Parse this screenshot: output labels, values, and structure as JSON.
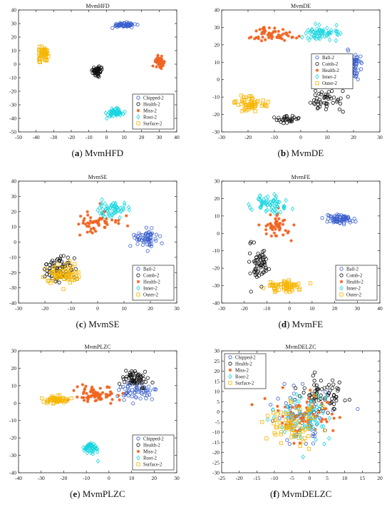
{
  "colors": {
    "blue": "#3a5fcd",
    "black": "#111111",
    "orange": "#f06522",
    "cyan": "#19d6e0",
    "yellow": "#f7b500"
  },
  "chart_data": [
    {
      "type": "scatter",
      "id": "a",
      "title": "MvmHFD",
      "caption_letter": "(a)",
      "caption_name": "MvmHFD",
      "xlim": [
        -50,
        40
      ],
      "ylim": [
        -50,
        40
      ],
      "xticks": [
        -50,
        -40,
        -30,
        -20,
        -10,
        0,
        10,
        20,
        30,
        40
      ],
      "yticks": [
        -50,
        -40,
        -30,
        -20,
        -10,
        0,
        10,
        20,
        30,
        40
      ],
      "legend_position": "bottom-right",
      "series": [
        {
          "name": "Chipped-2",
          "marker": "circle",
          "color": "blue",
          "clusters": [
            {
              "cx": 10,
              "cy": 29,
              "sx": 6,
              "sy": 1.5,
              "n": 60
            }
          ]
        },
        {
          "name": "Health-2",
          "marker": "circle",
          "color": "black",
          "clusters": [
            {
              "cx": -5,
              "cy": -5,
              "sx": 2.5,
              "sy": 3,
              "n": 60
            }
          ]
        },
        {
          "name": "Miss-2",
          "marker": "star",
          "color": "orange",
          "clusters": [
            {
              "cx": 30,
              "cy": 2,
              "sx": 2.5,
              "sy": 3,
              "n": 60
            }
          ]
        },
        {
          "name": "Root-2",
          "marker": "diamond",
          "color": "cyan",
          "clusters": [
            {
              "cx": 5,
              "cy": -36,
              "sx": 4.5,
              "sy": 2.5,
              "n": 60
            }
          ]
        },
        {
          "name": "Surface-2",
          "marker": "square",
          "color": "yellow",
          "clusters": [
            {
              "cx": -36,
              "cy": 7,
              "sx": 2.5,
              "sy": 5,
              "n": 50
            }
          ]
        }
      ]
    },
    {
      "type": "scatter",
      "id": "b",
      "title": "MvmDE",
      "caption_letter": "(b)",
      "caption_name": "MvmDE",
      "xlim": [
        -30,
        30
      ],
      "ylim": [
        -30,
        40
      ],
      "xticks": [
        -30,
        -20,
        -10,
        0,
        10,
        20,
        30
      ],
      "yticks": [
        -30,
        -20,
        -10,
        0,
        10,
        20,
        30,
        40
      ],
      "legend_position": "right",
      "series": [
        {
          "name": "Ball-2",
          "marker": "circle",
          "color": "blue",
          "clusters": [
            {
              "cx": 20,
              "cy": 8,
              "sx": 3,
              "sy": 8,
              "n": 70
            }
          ]
        },
        {
          "name": "Comb-2",
          "marker": "circle",
          "color": "black",
          "clusters": [
            {
              "cx": 10,
              "cy": -12,
              "sx": 6,
              "sy": 6,
              "n": 50
            },
            {
              "cx": -5,
              "cy": -23,
              "sx": 4,
              "sy": 2,
              "n": 30
            }
          ]
        },
        {
          "name": "Health-2",
          "marker": "star",
          "color": "orange",
          "clusters": [
            {
              "cx": -10,
              "cy": 26,
              "sx": 7,
              "sy": 4,
              "n": 60
            }
          ]
        },
        {
          "name": "Inner-2",
          "marker": "diamond",
          "color": "cyan",
          "clusters": [
            {
              "cx": 8,
              "cy": 27,
              "sx": 6,
              "sy": 4,
              "n": 60
            }
          ]
        },
        {
          "name": "Outer-2",
          "marker": "square",
          "color": "yellow",
          "clusters": [
            {
              "cx": -19,
              "cy": -14,
              "sx": 5,
              "sy": 4,
              "n": 60
            }
          ]
        }
      ]
    },
    {
      "type": "scatter",
      "id": "c",
      "title": "MvmSE",
      "caption_letter": "(c)",
      "caption_name": "MvmSE",
      "xlim": [
        -30,
        30
      ],
      "ylim": [
        -40,
        40
      ],
      "xticks": [
        -30,
        -20,
        -10,
        0,
        10,
        20,
        30
      ],
      "yticks": [
        -40,
        -30,
        -20,
        -10,
        0,
        10,
        20,
        30,
        40
      ],
      "legend_position": "bottom-right",
      "series": [
        {
          "name": "Ball-2",
          "marker": "circle",
          "color": "blue",
          "clusters": [
            {
              "cx": 18,
              "cy": 2,
              "sx": 4,
              "sy": 5,
              "n": 60
            }
          ]
        },
        {
          "name": "Comb-2",
          "marker": "circle",
          "color": "black",
          "clusters": [
            {
              "cx": -15,
              "cy": -18,
              "sx": 5,
              "sy": 8,
              "n": 70
            }
          ]
        },
        {
          "name": "Health-2",
          "marker": "star",
          "color": "orange",
          "clusters": [
            {
              "cx": 0,
              "cy": 12,
              "sx": 7,
              "sy": 8,
              "n": 60
            }
          ]
        },
        {
          "name": "Inner-2",
          "marker": "diamond",
          "color": "cyan",
          "clusters": [
            {
              "cx": 5,
              "cy": 22,
              "sx": 6,
              "sy": 5,
              "n": 55
            }
          ]
        },
        {
          "name": "Outer-2",
          "marker": "square",
          "color": "yellow",
          "clusters": [
            {
              "cx": -13,
              "cy": -22,
              "sx": 6,
              "sy": 7,
              "n": 70
            }
          ]
        }
      ]
    },
    {
      "type": "scatter",
      "id": "d",
      "title": "MvmFE",
      "caption_letter": "(d)",
      "caption_name": "MvmFE",
      "xlim": [
        -30,
        40
      ],
      "ylim": [
        -40,
        30
      ],
      "xticks": [
        -30,
        -20,
        -10,
        0,
        10,
        20,
        30,
        40
      ],
      "yticks": [
        -40,
        -30,
        -20,
        -10,
        0,
        10,
        20,
        30
      ],
      "legend_position": "bottom-right",
      "series": [
        {
          "name": "Ball-2",
          "marker": "circle",
          "color": "blue",
          "clusters": [
            {
              "cx": 22,
              "cy": 8,
              "sx": 6,
              "sy": 2.5,
              "n": 70
            }
          ]
        },
        {
          "name": "Comb-2",
          "marker": "circle",
          "color": "black",
          "clusters": [
            {
              "cx": -13,
              "cy": -18,
              "sx": 4,
              "sy": 9,
              "n": 60
            }
          ]
        },
        {
          "name": "Health-2",
          "marker": "star",
          "color": "orange",
          "clusters": [
            {
              "cx": -6,
              "cy": 5,
              "sx": 5,
              "sy": 7,
              "n": 50
            }
          ]
        },
        {
          "name": "Inner-2",
          "marker": "diamond",
          "color": "cyan",
          "clusters": [
            {
              "cx": -8,
              "cy": 17,
              "sx": 7,
              "sy": 5,
              "n": 60
            }
          ]
        },
        {
          "name": "Outer-2",
          "marker": "square",
          "color": "yellow",
          "clusters": [
            {
              "cx": -2,
              "cy": -30,
              "sx": 7,
              "sy": 3,
              "n": 60
            }
          ]
        }
      ]
    },
    {
      "type": "scatter",
      "id": "e",
      "title": "MvmPLZC",
      "caption_letter": "(e)",
      "caption_name": "MvmPLZC",
      "xlim": [
        -40,
        30
      ],
      "ylim": [
        -40,
        30
      ],
      "xticks": [
        -40,
        -30,
        -20,
        -10,
        0,
        10,
        20,
        30
      ],
      "yticks": [
        -40,
        -30,
        -20,
        -10,
        0,
        10,
        20,
        30
      ],
      "legend_position": "bottom-right",
      "series": [
        {
          "name": "Chipped-2",
          "marker": "circle",
          "color": "blue",
          "clusters": [
            {
              "cx": 12,
              "cy": 7,
              "sx": 7,
              "sy": 5,
              "n": 60
            }
          ]
        },
        {
          "name": "Health-2",
          "marker": "circle",
          "color": "black",
          "clusters": [
            {
              "cx": 12,
              "cy": 14,
              "sx": 6,
              "sy": 5,
              "n": 60
            }
          ]
        },
        {
          "name": "Miss-2",
          "marker": "star",
          "color": "orange",
          "clusters": [
            {
              "cx": -5,
              "cy": 5,
              "sx": 9,
              "sy": 4,
              "n": 70
            }
          ]
        },
        {
          "name": "Root-2",
          "marker": "diamond",
          "color": "cyan",
          "clusters": [
            {
              "cx": -8,
              "cy": -26,
              "sx": 3,
              "sy": 3,
              "n": 50
            }
          ]
        },
        {
          "name": "Surface-2",
          "marker": "square",
          "color": "yellow",
          "clusters": [
            {
              "cx": -24,
              "cy": 2,
              "sx": 6,
              "sy": 2,
              "n": 50
            }
          ]
        }
      ]
    },
    {
      "type": "scatter",
      "id": "f",
      "title": "MvmDELZC",
      "caption_letter": "(f)",
      "caption_name": "MvmDELZC",
      "xlim": [
        -25,
        20
      ],
      "ylim": [
        -30,
        30
      ],
      "xticks": [
        -25,
        -20,
        -15,
        -10,
        -5,
        0,
        5,
        10,
        15,
        20
      ],
      "yticks": [
        -30,
        -25,
        -20,
        -15,
        -10,
        -5,
        0,
        5,
        10,
        15,
        20,
        25,
        30
      ],
      "legend_position": "top-left",
      "series": [
        {
          "name": "Chipped-2",
          "marker": "circle",
          "color": "blue",
          "clusters": [
            {
              "cx": -3,
              "cy": -2,
              "sx": 8,
              "sy": 11,
              "n": 70
            }
          ]
        },
        {
          "name": "Health-2",
          "marker": "circle",
          "color": "black",
          "clusters": [
            {
              "cx": 4,
              "cy": 8,
              "sx": 6,
              "sy": 9,
              "n": 70
            }
          ]
        },
        {
          "name": "Miss-2",
          "marker": "star",
          "color": "orange",
          "clusters": [
            {
              "cx": -2,
              "cy": 0,
              "sx": 8,
              "sy": 10,
              "n": 70
            }
          ]
        },
        {
          "name": "Root-2",
          "marker": "diamond",
          "color": "cyan",
          "clusters": [
            {
              "cx": -1,
              "cy": -3,
              "sx": 8,
              "sy": 10,
              "n": 70
            }
          ]
        },
        {
          "name": "Surface-2",
          "marker": "square",
          "color": "yellow",
          "clusters": [
            {
              "cx": -5,
              "cy": -6,
              "sx": 7,
              "sy": 9,
              "n": 70
            }
          ]
        }
      ]
    }
  ]
}
